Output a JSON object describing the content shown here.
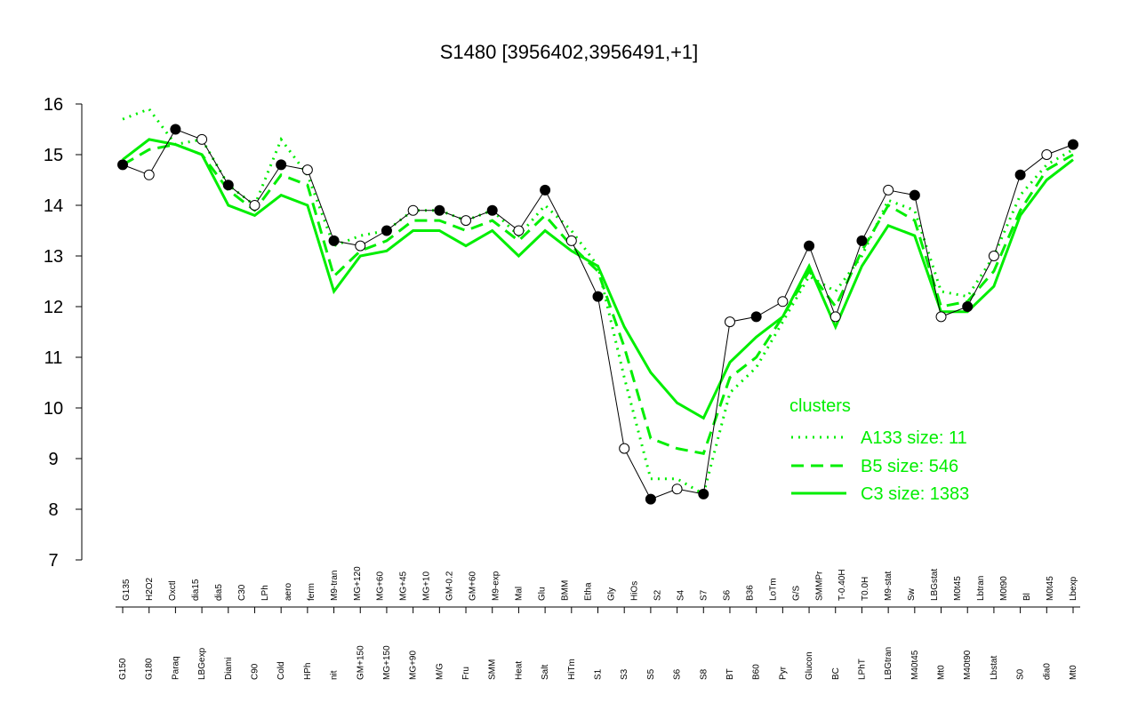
{
  "chart_data": {
    "type": "line",
    "title": "S1480 [3956402,3956491,+1]",
    "xlabel": "",
    "ylabel": "",
    "ylim": [
      7,
      16
    ],
    "yticks": [
      7,
      8,
      9,
      10,
      11,
      12,
      13,
      14,
      15,
      16
    ],
    "grid": false,
    "legend_position": "lower-right",
    "legend_title": "clusters",
    "accent_color": "#00ee00",
    "categories_bottom": [
      "G150",
      "G180",
      "Paraq",
      "LBGexp",
      "Diami",
      "C90",
      "Cold",
      "HPh",
      "nit",
      "GM+150",
      "MG+150",
      "MG+90",
      "M/G",
      "Fru",
      "SMM",
      "Heat",
      "Salt",
      "HiTm",
      "S1",
      "S3",
      "S5",
      "S6",
      "S8",
      "BT",
      "B60",
      "Pyr",
      "Glucon",
      "BC",
      "LPhT",
      "LBGtran",
      "M40t45",
      "Mt0",
      "M40t90",
      "Lbstat",
      "S0",
      "dia0",
      "Mt0"
    ],
    "categories_top": [
      "G135",
      "H2O2",
      "Oxctl",
      "dia15",
      "dia5",
      "C30",
      "LPh",
      "aero",
      "ferm",
      "M9-tran",
      "MG+120",
      "MG+60",
      "MG+45",
      "MG+10",
      "GM-0.2",
      "GM+60",
      "M9-exp",
      "Mal",
      "Glu",
      "BMM",
      "Etha",
      "Gly",
      "HiOs",
      "S2",
      "S4",
      "S7",
      "S6",
      "B36",
      "LoTm",
      "G/S",
      "SMMPr",
      "T-0.40H",
      "T0.0H",
      "M9-stat",
      "Sw",
      "LBGstat",
      "M0t45",
      "Lbtran",
      "M0t90",
      "Bl",
      "M0t45",
      "Lbexp"
    ],
    "series": [
      {
        "name": "A133 size: 11",
        "style": "dotted",
        "color": "#00ee00",
        "values": [
          15.7,
          15.9,
          15.2,
          15.3,
          14.4,
          14.0,
          15.3,
          14.6,
          13.2,
          13.4,
          13.5,
          13.9,
          13.9,
          13.7,
          13.9,
          13.4,
          14.0,
          13.5,
          12.8,
          10.6,
          8.6,
          8.6,
          8.3,
          10.3,
          10.8,
          11.7,
          12.6,
          12.3,
          13.0,
          14.1,
          13.9,
          12.3,
          12.2,
          13.0,
          14.2,
          14.8,
          15.1
        ]
      },
      {
        "name": "B5 size: 546",
        "style": "dashed",
        "color": "#00ee00",
        "values": [
          14.8,
          15.1,
          15.2,
          15.0,
          14.3,
          13.9,
          14.6,
          14.4,
          12.6,
          13.1,
          13.3,
          13.7,
          13.7,
          13.5,
          13.7,
          13.3,
          13.8,
          13.2,
          12.7,
          11.2,
          9.4,
          9.2,
          9.1,
          10.6,
          11.0,
          11.8,
          12.7,
          12.0,
          13.1,
          14.0,
          13.7,
          12.0,
          12.1,
          12.7,
          13.9,
          14.7,
          15.0
        ]
      },
      {
        "name": "C3 size: 1383",
        "style": "solid",
        "color": "#00ee00",
        "values": [
          14.9,
          15.3,
          15.2,
          15.0,
          14.0,
          13.8,
          14.2,
          14.0,
          12.3,
          13.0,
          13.1,
          13.5,
          13.5,
          13.2,
          13.5,
          13.0,
          13.5,
          13.1,
          12.8,
          11.6,
          10.7,
          10.1,
          9.8,
          10.9,
          11.4,
          11.8,
          12.8,
          11.6,
          12.8,
          13.6,
          13.4,
          11.9,
          11.9,
          12.4,
          13.8,
          14.5,
          14.9
        ]
      },
      {
        "name": "S1480 [3956402,3956491,+1]",
        "style": "points",
        "color": "#000000",
        "values": [
          14.8,
          14.6,
          15.5,
          15.3,
          14.4,
          14.0,
          14.8,
          14.7,
          13.3,
          13.2,
          13.5,
          13.9,
          13.9,
          13.7,
          13.9,
          13.5,
          14.3,
          13.3,
          12.2,
          9.2,
          8.2,
          8.4,
          8.3,
          11.7,
          11.8,
          12.1,
          13.2,
          11.8,
          13.3,
          14.3,
          14.2,
          11.8,
          12.0,
          13.0,
          14.6,
          15.0,
          15.2
        ]
      }
    ]
  }
}
